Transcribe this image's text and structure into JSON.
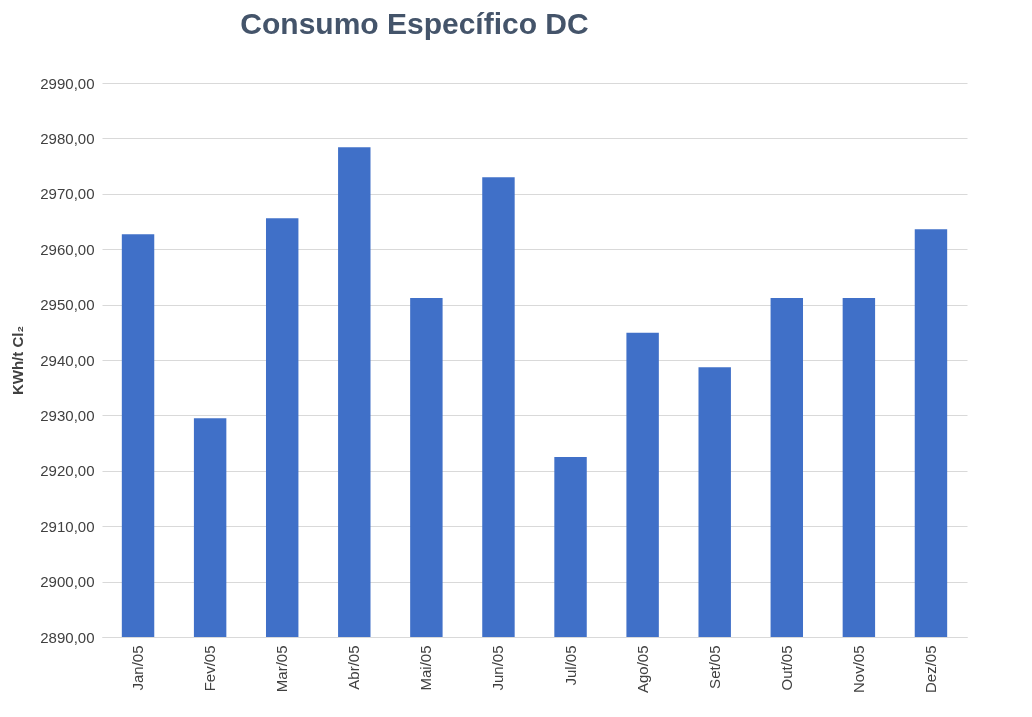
{
  "chart_data": {
    "type": "bar",
    "title": "Consumo Específico DC",
    "ylabel": "KWh/t Cl₂",
    "categories": [
      "Jan/05",
      "Fev/05",
      "Mar/05",
      "Abr/05",
      "Mai/05",
      "Jun/05",
      "Jul/05",
      "Ago/05",
      "Set/05",
      "Out/05",
      "Nov/05",
      "Dez/05"
    ],
    "values": [
      2962.7,
      2929.5,
      2965.6,
      2978.4,
      2951.2,
      2973.0,
      2922.5,
      2944.9,
      2938.7,
      2951.2,
      2951.2,
      2963.6
    ],
    "color": "#4070c8",
    "ylim": [
      2890,
      2990
    ],
    "yticks": [
      {
        "value": 2890,
        "label": "2890,00"
      },
      {
        "value": 2900,
        "label": "2900,00"
      },
      {
        "value": 2910,
        "label": "2910,00"
      },
      {
        "value": 2920,
        "label": "2920,00"
      },
      {
        "value": 2930,
        "label": "2930,00"
      },
      {
        "value": 2940,
        "label": "2940,00"
      },
      {
        "value": 2950,
        "label": "2950,00"
      },
      {
        "value": 2960,
        "label": "2960,00"
      },
      {
        "value": 2970,
        "label": "2970,00"
      },
      {
        "value": 2980,
        "label": "2980,00"
      },
      {
        "value": 2990,
        "label": "2990,00"
      }
    ],
    "grid": "y"
  }
}
